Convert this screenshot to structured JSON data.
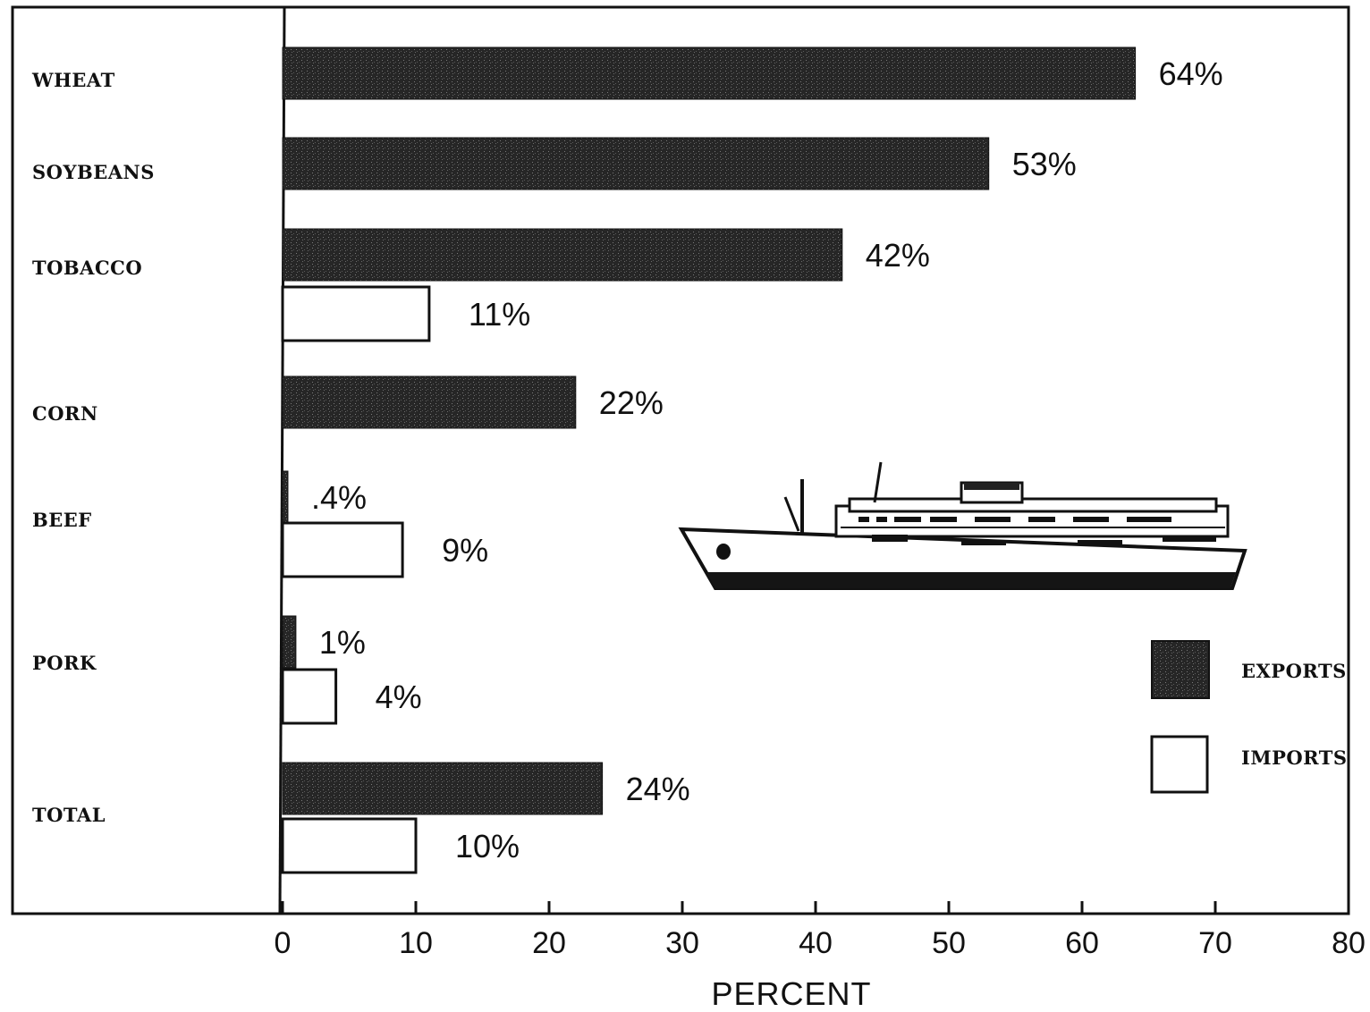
{
  "chart_data": {
    "type": "bar",
    "orientation": "horizontal",
    "categories": [
      "WHEAT",
      "SOYBEANS",
      "TOBACCO",
      "CORN",
      "BEEF",
      "PORK",
      "TOTAL"
    ],
    "series": [
      {
        "name": "EXPORTS",
        "values": [
          64,
          53,
          42,
          22,
          0.4,
          1,
          24
        ],
        "labels": [
          "64%",
          "53%",
          "42%",
          "22%",
          ".4%",
          "1%",
          "24%"
        ],
        "color": "#2b2b2b"
      },
      {
        "name": "IMPORTS",
        "values": [
          null,
          null,
          11,
          null,
          9,
          4,
          10
        ],
        "labels": [
          null,
          null,
          "11%",
          null,
          "9%",
          "4%",
          "10%"
        ],
        "color": "#ffffff"
      }
    ],
    "xlabel": "PERCENT",
    "xlim": [
      0,
      80
    ],
    "xticks": [
      "0",
      "10",
      "20",
      "30",
      "40",
      "50",
      "60",
      "70",
      "80"
    ],
    "grid": false,
    "legend_position": "right",
    "illustration": "cargo-ship"
  }
}
